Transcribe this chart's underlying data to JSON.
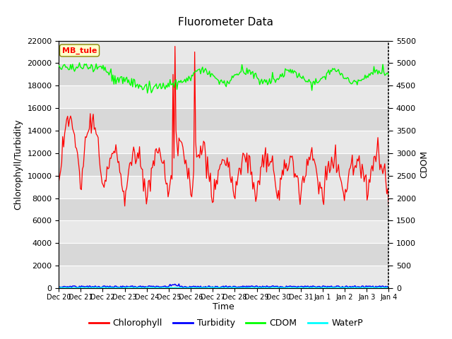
{
  "title": "Fluorometer Data",
  "xlabel": "Time",
  "ylabel_left": "Chlorophyll/Turbidity",
  "ylabel_right": "CDOM",
  "ylim_left": [
    0,
    22000
  ],
  "ylim_right": [
    0,
    5500
  ],
  "yticks_left": [
    0,
    2000,
    4000,
    6000,
    8000,
    10000,
    12000,
    14000,
    16000,
    18000,
    20000,
    22000
  ],
  "yticks_right": [
    0,
    500,
    1000,
    1500,
    2000,
    2500,
    3000,
    3500,
    4000,
    4500,
    5000,
    5500
  ],
  "xtick_labels": [
    "Dec 20",
    "Dec 21",
    "Dec 22",
    "Dec 23",
    "Dec 24",
    "Dec 25",
    "Dec 26",
    "Dec 27",
    "Dec 28",
    "Dec 29",
    "Dec 30",
    "Dec 31",
    "Jan 1",
    "Jan 2",
    "Jan 3",
    "Jan 4"
  ],
  "station_label": "MB_tule",
  "fig_bg_color": "#ffffff",
  "plot_bg_color": "#e8e8e8",
  "band_colors": [
    "#e8e8e8",
    "#d8d8d8"
  ],
  "chlorophyll_color": "#ff0000",
  "turbidity_color": "#0000ff",
  "cdom_color": "#00ff00",
  "waterp_color": "#00ffff",
  "legend_labels": [
    "Chlorophyll",
    "Turbidity",
    "CDOM",
    "WaterP"
  ],
  "n_points": 336,
  "n_days": 15
}
